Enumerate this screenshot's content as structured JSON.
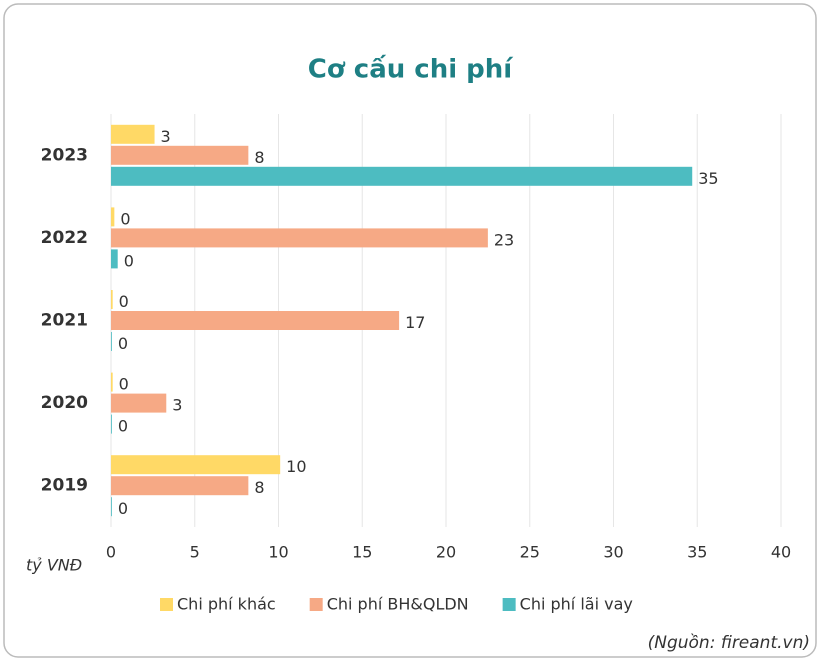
{
  "chart_data": {
    "type": "hbar",
    "title": "Cơ cấu chi phí",
    "categories": [
      "2023",
      "2022",
      "2021",
      "2020",
      "2019"
    ],
    "series": [
      {
        "name": "Chi phí khác",
        "color": "#ffd966",
        "values": [
          2.6,
          0.2,
          0.1,
          0.1,
          10.1
        ],
        "value_labels": [
          "3",
          "0",
          "0",
          "0",
          "10"
        ]
      },
      {
        "name": "Chi phí BH&QLDN",
        "color": "#f6a985",
        "values": [
          8.2,
          22.5,
          17.2,
          3.3,
          8.2
        ],
        "value_labels": [
          "8",
          "23",
          "17",
          "3",
          "8"
        ]
      },
      {
        "name": "Chi phí lãi vay",
        "color": "#4dbcc1",
        "values": [
          34.7,
          0.4,
          0.05,
          0.05,
          0.05
        ],
        "value_labels": [
          "35",
          "0",
          "0",
          "0",
          "0"
        ]
      }
    ],
    "xlim": [
      0,
      40
    ],
    "xticks": [
      0,
      5,
      10,
      15,
      20,
      25,
      30,
      35,
      40
    ],
    "grid": true,
    "xlabel": "tỷ VNĐ",
    "source": "(Nguồn: fireant.vn)",
    "legend": "bottom"
  }
}
